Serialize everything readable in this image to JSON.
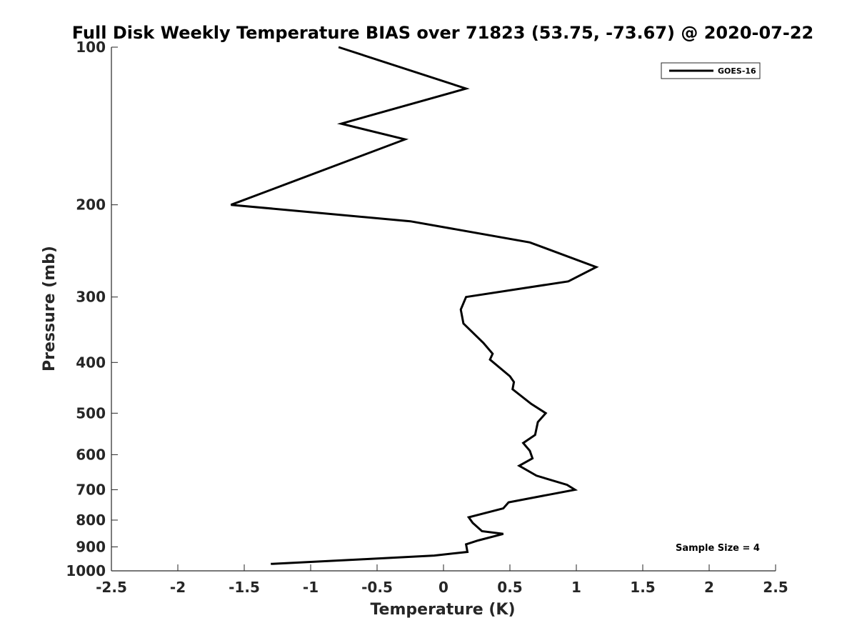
{
  "chart_data": {
    "type": "line",
    "title": "Full Disk Weekly Temperature BIAS over 71823 (53.75, -73.67) @ 2020-07-22",
    "xlabel": "Temperature (K)",
    "ylabel": "Pressure (mb)",
    "xlim": [
      -2.5,
      2.5
    ],
    "ylim": [
      100,
      1000
    ],
    "y_scale": "log",
    "y_reversed": true,
    "grid": false,
    "legend_position": "top-right",
    "x_ticks": [
      "-2.5",
      "-2",
      "-1.5",
      "-1",
      "-0.5",
      "0",
      "0.5",
      "1",
      "1.5",
      "2",
      "2.5"
    ],
    "x_tick_values": [
      -2.5,
      -2,
      -1.5,
      -1,
      -0.5,
      0,
      0.5,
      1,
      1.5,
      2,
      2.5
    ],
    "y_ticks": [
      "100",
      "200",
      "300",
      "400",
      "500",
      "600",
      "700",
      "800",
      "900",
      "1000"
    ],
    "y_tick_values": [
      100,
      200,
      300,
      400,
      500,
      600,
      700,
      800,
      900,
      1000
    ],
    "series": [
      {
        "name": "GOES-16",
        "color": "#000000",
        "points": [
          [
            -0.79,
            100
          ],
          [
            0.17,
            120
          ],
          [
            -0.77,
            140
          ],
          [
            -0.29,
            150
          ],
          [
            -1.6,
            200
          ],
          [
            -0.25,
            215
          ],
          [
            0.65,
            236
          ],
          [
            1.15,
            263
          ],
          [
            0.94,
            280
          ],
          [
            0.17,
            300
          ],
          [
            0.13,
            317
          ],
          [
            0.15,
            337
          ],
          [
            0.3,
            367
          ],
          [
            0.37,
            385
          ],
          [
            0.35,
            395
          ],
          [
            0.5,
            425
          ],
          [
            0.53,
            436
          ],
          [
            0.52,
            450
          ],
          [
            0.66,
            480
          ],
          [
            0.77,
            500
          ],
          [
            0.71,
            520
          ],
          [
            0.69,
            550
          ],
          [
            0.6,
            570
          ],
          [
            0.65,
            590
          ],
          [
            0.67,
            610
          ],
          [
            0.57,
            630
          ],
          [
            0.7,
            658
          ],
          [
            0.93,
            685
          ],
          [
            0.99,
            700
          ],
          [
            0.81,
            714
          ],
          [
            0.49,
            740
          ],
          [
            0.45,
            760
          ],
          [
            0.19,
            790
          ],
          [
            0.22,
            810
          ],
          [
            0.29,
            840
          ],
          [
            0.45,
            850
          ],
          [
            0.26,
            875
          ],
          [
            0.17,
            890
          ],
          [
            0.18,
            920
          ],
          [
            -0.07,
            935
          ],
          [
            -0.6,
            950
          ],
          [
            -1.3,
            970
          ]
        ]
      }
    ],
    "annotations": [
      "Sample Size = 4"
    ]
  }
}
